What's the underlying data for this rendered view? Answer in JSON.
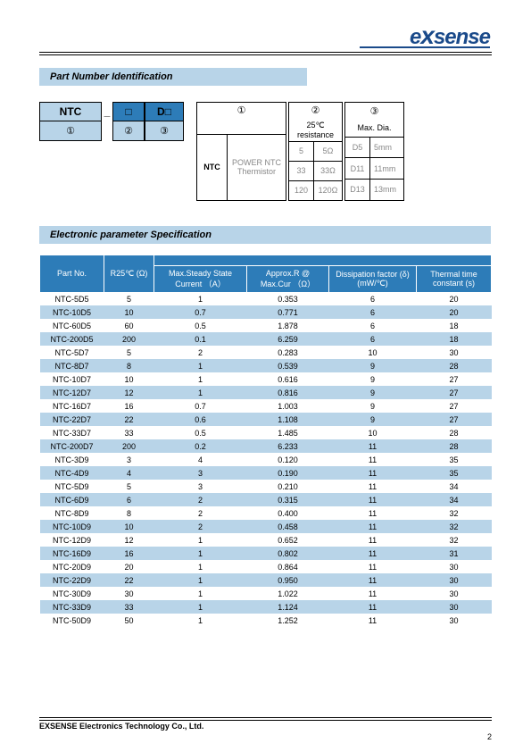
{
  "logo": {
    "text_e": "e",
    "text_x": "x",
    "text_sense": "sense"
  },
  "sections": {
    "part_number_title": "Part Number Identification",
    "spec_title": "Electronic parameter Specification"
  },
  "pni_code": {
    "ntc": "NTC",
    "dash": "_",
    "box": "□",
    "d": "D□",
    "circ1": "①",
    "circ2": "②",
    "circ3": "③"
  },
  "pni_table1": {
    "head_circ": "①",
    "label": "NTC",
    "desc": "POWER NTC Thermistor"
  },
  "pni_table2": {
    "head_circ": "②",
    "head_label": "25℃ resistance",
    "rows": [
      {
        "a": "5",
        "b": "5Ω"
      },
      {
        "a": "33",
        "b": "33Ω"
      },
      {
        "a": "120",
        "b": "120Ω"
      }
    ]
  },
  "pni_table3": {
    "head_circ": "③",
    "head_label": "Max. Dia.",
    "rows": [
      {
        "a": "D5",
        "b": "5mm"
      },
      {
        "a": "D11",
        "b": "11mm"
      },
      {
        "a": "D13",
        "b": "13mm"
      }
    ]
  },
  "spec_headers": {
    "c1": "Part No.",
    "c2": "R25℃\n(Ω)",
    "c3": "Max.Steady State Current （A）",
    "c4": "Approx.R @ Max.Cur （Ω）",
    "c5": "Dissipation factor (δ)(mW/℃)",
    "c6": "Thermal time constant (s)"
  },
  "spec_rows": [
    {
      "pn": "NTC-5D5",
      "r": "5",
      "c": "1",
      "ar": "0.353",
      "df": "6",
      "tc": "20"
    },
    {
      "pn": "NTC-10D5",
      "r": "10",
      "c": "0.7",
      "ar": "0.771",
      "df": "6",
      "tc": "20"
    },
    {
      "pn": "NTC-60D5",
      "r": "60",
      "c": "0.5",
      "ar": "1.878",
      "df": "6",
      "tc": "18"
    },
    {
      "pn": "NTC-200D5",
      "r": "200",
      "c": "0.1",
      "ar": "6.259",
      "df": "6",
      "tc": "18"
    },
    {
      "pn": "NTC-5D7",
      "r": "5",
      "c": "2",
      "ar": "0.283",
      "df": "10",
      "tc": "30"
    },
    {
      "pn": "NTC-8D7",
      "r": "8",
      "c": "1",
      "ar": "0.539",
      "df": "9",
      "tc": "28"
    },
    {
      "pn": "NTC-10D7",
      "r": "10",
      "c": "1",
      "ar": "0.616",
      "df": "9",
      "tc": "27"
    },
    {
      "pn": "NTC-12D7",
      "r": "12",
      "c": "1",
      "ar": "0.816",
      "df": "9",
      "tc": "27"
    },
    {
      "pn": "NTC-16D7",
      "r": "16",
      "c": "0.7",
      "ar": "1.003",
      "df": "9",
      "tc": "27"
    },
    {
      "pn": "NTC-22D7",
      "r": "22",
      "c": "0.6",
      "ar": "1.108",
      "df": "9",
      "tc": "27"
    },
    {
      "pn": "NTC-33D7",
      "r": "33",
      "c": "0.5",
      "ar": "1.485",
      "df": "10",
      "tc": "28"
    },
    {
      "pn": "NTC-200D7",
      "r": "200",
      "c": "0.2",
      "ar": "6.233",
      "df": "11",
      "tc": "28"
    },
    {
      "pn": "NTC-3D9",
      "r": "3",
      "c": "4",
      "ar": "0.120",
      "df": "11",
      "tc": "35"
    },
    {
      "pn": "NTC-4D9",
      "r": "4",
      "c": "3",
      "ar": "0.190",
      "df": "11",
      "tc": "35"
    },
    {
      "pn": "NTC-5D9",
      "r": "5",
      "c": "3",
      "ar": "0.210",
      "df": "11",
      "tc": "34"
    },
    {
      "pn": "NTC-6D9",
      "r": "6",
      "c": "2",
      "ar": "0.315",
      "df": "11",
      "tc": "34"
    },
    {
      "pn": "NTC-8D9",
      "r": "8",
      "c": "2",
      "ar": "0.400",
      "df": "11",
      "tc": "32"
    },
    {
      "pn": "NTC-10D9",
      "r": "10",
      "c": "2",
      "ar": "0.458",
      "df": "11",
      "tc": "32"
    },
    {
      "pn": "NTC-12D9",
      "r": "12",
      "c": "1",
      "ar": "0.652",
      "df": "11",
      "tc": "32"
    },
    {
      "pn": "NTC-16D9",
      "r": "16",
      "c": "1",
      "ar": "0.802",
      "df": "11",
      "tc": "31"
    },
    {
      "pn": "NTC-20D9",
      "r": "20",
      "c": "1",
      "ar": "0.864",
      "df": "11",
      "tc": "30"
    },
    {
      "pn": "NTC-22D9",
      "r": "22",
      "c": "1",
      "ar": "0.950",
      "df": "11",
      "tc": "30"
    },
    {
      "pn": "NTC-30D9",
      "r": "30",
      "c": "1",
      "ar": "1.022",
      "df": "11",
      "tc": "30"
    },
    {
      "pn": "NTC-33D9",
      "r": "33",
      "c": "1",
      "ar": "1.124",
      "df": "11",
      "tc": "30"
    },
    {
      "pn": "NTC-50D9",
      "r": "50",
      "c": "1",
      "ar": "1.252",
      "df": "11",
      "tc": "30"
    }
  ],
  "footer": {
    "company": "EXSENSE    Electronics Technology Co., Ltd.",
    "page": "2"
  }
}
